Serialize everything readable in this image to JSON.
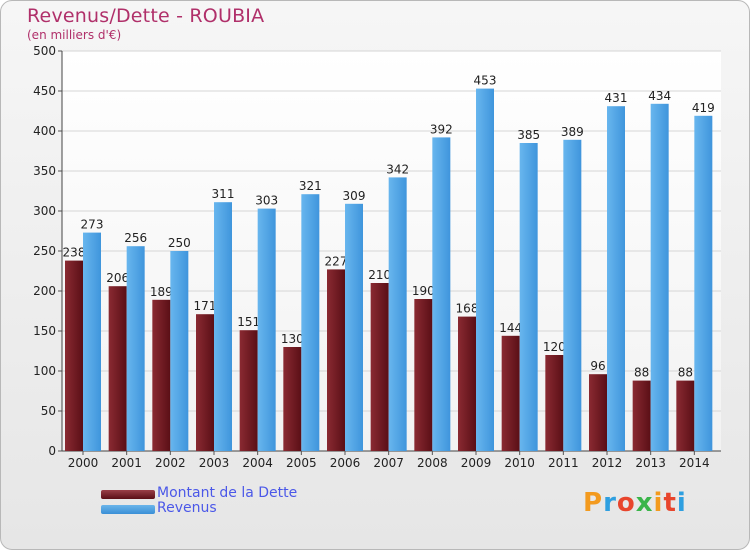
{
  "chart_data": {
    "type": "bar",
    "title": "Revenus/Dette - ROUBIA",
    "subtitle": "(en milliers d'€)",
    "categories": [
      "2000",
      "2001",
      "2002",
      "2003",
      "2004",
      "2005",
      "2006",
      "2007",
      "2008",
      "2009",
      "2010",
      "2011",
      "2012",
      "2013",
      "2014"
    ],
    "series": [
      {
        "name": "Montant de la Dette",
        "color": "#6e1a22",
        "values": [
          238,
          206,
          189,
          171,
          151,
          130,
          227,
          210,
          190,
          168,
          144,
          120,
          96,
          88,
          88
        ]
      },
      {
        "name": "Revenus",
        "color": "#4aa3e6",
        "values": [
          273,
          256,
          250,
          311,
          303,
          321,
          309,
          342,
          392,
          453,
          385,
          389,
          431,
          434,
          419
        ]
      }
    ],
    "ylim": [
      0,
      500
    ],
    "yticks": [
      0,
      50,
      100,
      150,
      200,
      250,
      300,
      350,
      400,
      450,
      500
    ],
    "grid": true,
    "legend_position": "bottom-left"
  },
  "logo": {
    "letters": [
      "P",
      "r",
      "o",
      "x",
      "i",
      "t",
      "i"
    ],
    "colors": [
      "#f39a1e",
      "#2e9fe0",
      "#e8452c",
      "#3ab54a",
      "#f39a1e",
      "#e8452c",
      "#2e9fe0"
    ]
  }
}
